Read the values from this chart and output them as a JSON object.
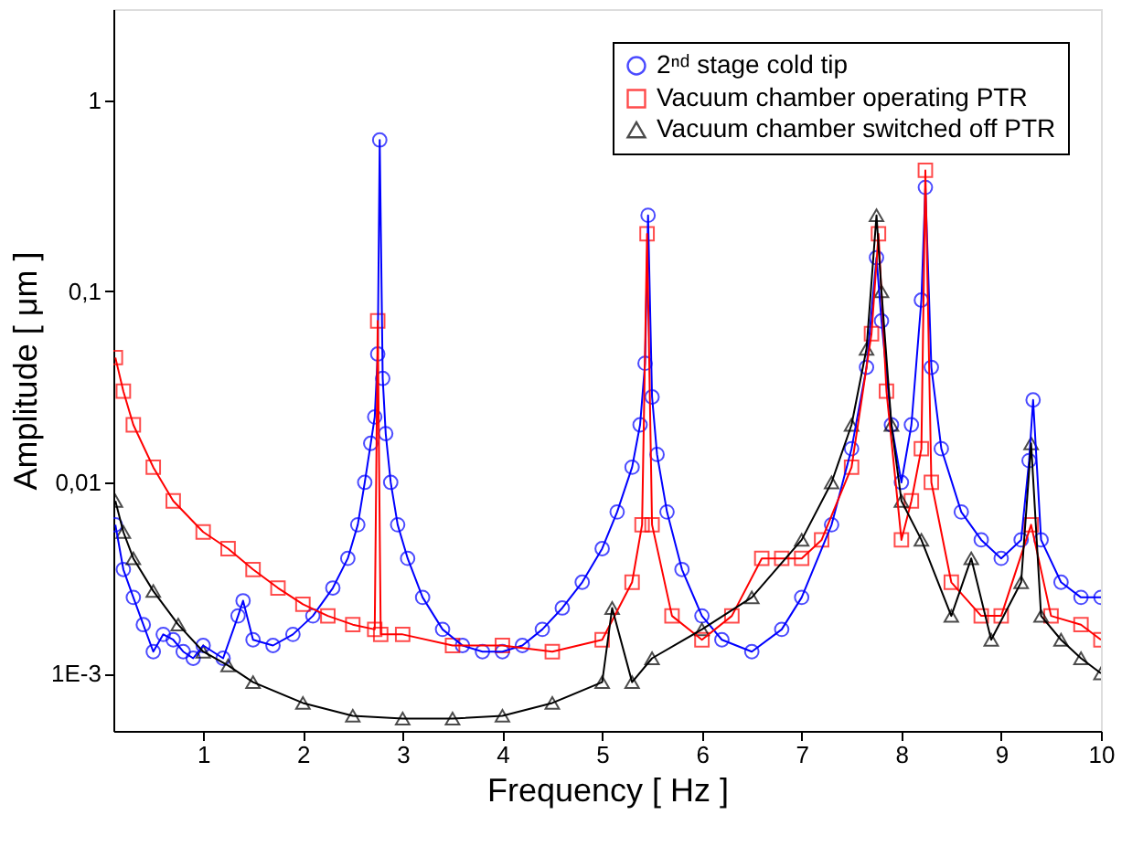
{
  "chart_data": {
    "type": "line",
    "xlabel": "Frequency  [ Hz ]",
    "ylabel": "Amplitude [ μm ]",
    "log": "y",
    "grid": false,
    "legend": "top right",
    "line_style": "solid",
    "xlim": [
      0.1,
      10
    ],
    "xticks": [
      1,
      2,
      3,
      4,
      5,
      6,
      7,
      8,
      9,
      10
    ],
    "ylim": [
      0.0005,
      3
    ],
    "yticks": [
      {
        "value": 0.001,
        "label": "1E-3"
      },
      {
        "value": 0.01,
        "label": "0,01"
      },
      {
        "value": 0.1,
        "label": "0,1"
      },
      {
        "value": 1,
        "label": "1"
      }
    ],
    "series": [
      {
        "name": "2ⁿᵈ stage cold tip",
        "color": "#0000ff",
        "marker": "circle",
        "x": [
          0.12,
          0.2,
          0.3,
          0.4,
          0.5,
          0.6,
          0.7,
          0.8,
          0.9,
          1.0,
          1.2,
          1.35,
          1.4,
          1.5,
          1.7,
          1.9,
          2.1,
          2.3,
          2.45,
          2.55,
          2.62,
          2.68,
          2.72,
          2.75,
          2.77,
          2.8,
          2.83,
          2.88,
          2.95,
          3.05,
          3.2,
          3.4,
          3.6,
          3.8,
          4.0,
          4.2,
          4.4,
          4.6,
          4.8,
          5.0,
          5.15,
          5.3,
          5.38,
          5.43,
          5.46,
          5.5,
          5.55,
          5.65,
          5.8,
          6.0,
          6.2,
          6.5,
          6.8,
          7.0,
          7.3,
          7.5,
          7.65,
          7.75,
          7.8,
          7.9,
          8.0,
          8.1,
          8.2,
          8.24,
          8.3,
          8.4,
          8.6,
          8.8,
          9.0,
          9.2,
          9.28,
          9.32,
          9.4,
          9.6,
          9.8,
          10
        ],
        "values": [
          0.006,
          0.0035,
          0.0025,
          0.0018,
          0.0013,
          0.0016,
          0.0015,
          0.0013,
          0.0012,
          0.0014,
          0.0012,
          0.002,
          0.0024,
          0.0015,
          0.0014,
          0.0016,
          0.002,
          0.0028,
          0.004,
          0.006,
          0.01,
          0.016,
          0.022,
          0.047,
          0.62,
          0.035,
          0.018,
          0.01,
          0.006,
          0.004,
          0.0025,
          0.0017,
          0.0014,
          0.0013,
          0.0013,
          0.0014,
          0.0017,
          0.0022,
          0.003,
          0.0045,
          0.007,
          0.012,
          0.02,
          0.042,
          0.25,
          0.028,
          0.014,
          0.007,
          0.0035,
          0.002,
          0.0015,
          0.0013,
          0.0017,
          0.0025,
          0.006,
          0.015,
          0.04,
          0.15,
          0.07,
          0.02,
          0.01,
          0.02,
          0.09,
          0.35,
          0.04,
          0.015,
          0.007,
          0.005,
          0.004,
          0.005,
          0.013,
          0.027,
          0.005,
          0.003,
          0.0025,
          0.0025
        ]
      },
      {
        "name": "Vacuum chamber operating PTR",
        "color": "#ff0000",
        "marker": "square",
        "x": [
          0.12,
          0.2,
          0.3,
          0.5,
          0.7,
          1.0,
          1.25,
          1.5,
          1.75,
          2.0,
          2.25,
          2.5,
          2.72,
          2.75,
          2.78,
          3.0,
          3.5,
          4.0,
          4.5,
          5.0,
          5.3,
          5.4,
          5.45,
          5.5,
          5.7,
          6.0,
          6.3,
          6.6,
          6.8,
          7.0,
          7.2,
          7.5,
          7.7,
          7.77,
          7.85,
          8.0,
          8.1,
          8.2,
          8.24,
          8.3,
          8.5,
          8.8,
          9.0,
          9.3,
          9.5,
          9.8,
          10
        ],
        "values": [
          0.045,
          0.03,
          0.02,
          0.012,
          0.008,
          0.0055,
          0.0045,
          0.0035,
          0.0028,
          0.0023,
          0.002,
          0.0018,
          0.0017,
          0.07,
          0.0016,
          0.0016,
          0.0014,
          0.0014,
          0.0013,
          0.0015,
          0.003,
          0.006,
          0.2,
          0.006,
          0.002,
          0.0015,
          0.002,
          0.004,
          0.004,
          0.004,
          0.005,
          0.012,
          0.06,
          0.2,
          0.03,
          0.005,
          0.008,
          0.015,
          0.43,
          0.01,
          0.003,
          0.002,
          0.002,
          0.006,
          0.002,
          0.0018,
          0.0015
        ]
      },
      {
        "name": "Vacuum chamber switched off PTR",
        "color": "#000000",
        "marker": "triangle",
        "x": [
          0.12,
          0.2,
          0.3,
          0.5,
          0.75,
          1.0,
          1.25,
          1.5,
          2.0,
          2.5,
          3.0,
          3.5,
          4.0,
          4.5,
          5.0,
          5.1,
          5.3,
          5.5,
          6.0,
          6.5,
          7.0,
          7.3,
          7.5,
          7.65,
          7.75,
          7.8,
          7.9,
          8.0,
          8.2,
          8.5,
          8.7,
          8.9,
          9.2,
          9.3,
          9.4,
          9.6,
          9.8,
          10
        ],
        "values": [
          0.008,
          0.0055,
          0.004,
          0.0027,
          0.0018,
          0.0013,
          0.0011,
          0.0009,
          0.0007,
          0.0006,
          0.00058,
          0.00058,
          0.0006,
          0.0007,
          0.0009,
          0.0022,
          0.0009,
          0.0012,
          0.0017,
          0.0025,
          0.005,
          0.01,
          0.02,
          0.05,
          0.25,
          0.1,
          0.02,
          0.008,
          0.005,
          0.002,
          0.004,
          0.0015,
          0.003,
          0.016,
          0.002,
          0.0015,
          0.0012,
          0.001
        ]
      }
    ]
  }
}
